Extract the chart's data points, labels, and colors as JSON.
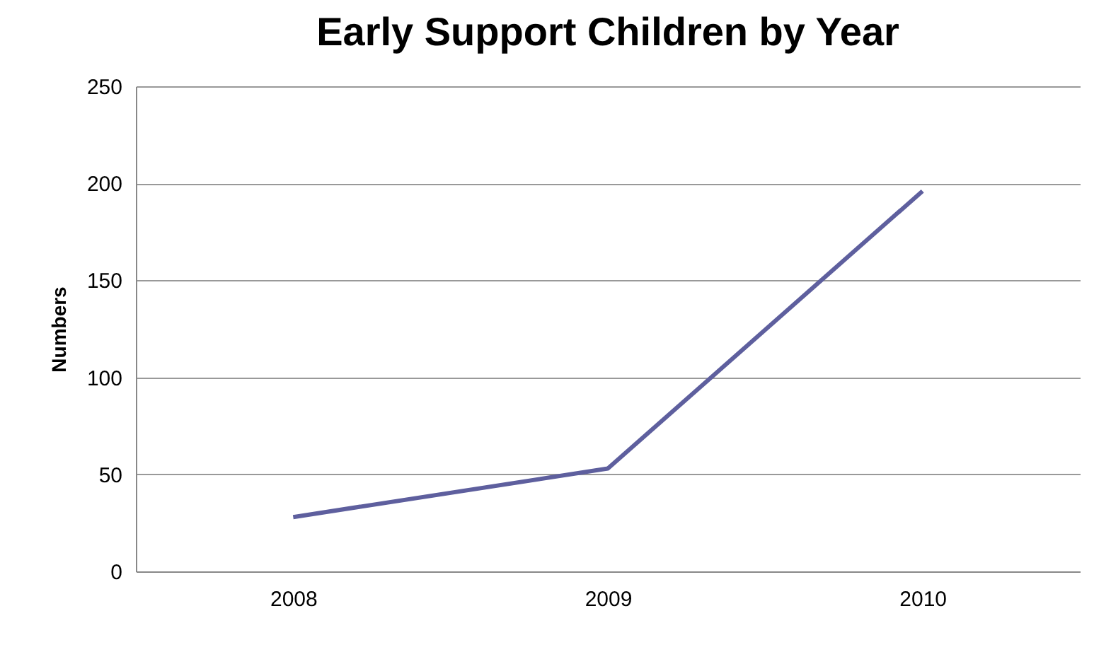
{
  "chart_data": {
    "type": "line",
    "title": "Early Support Children by Year",
    "ylabel": "Numbers",
    "categories": [
      "2008",
      "2009",
      "2010"
    ],
    "series": [
      {
        "color": "#5e5f9e",
        "values": [
          28,
          53,
          196
        ]
      }
    ],
    "ylim": [
      0,
      250
    ],
    "yticks": [
      0,
      50,
      100,
      150,
      200,
      250
    ],
    "grid": "y",
    "marker": "none",
    "line_style": "solid"
  }
}
